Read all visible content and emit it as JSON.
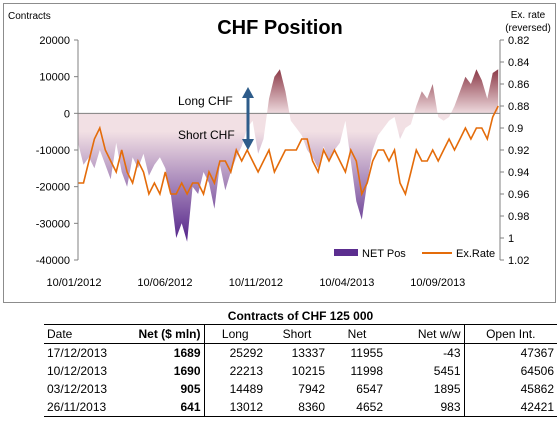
{
  "chart_data": {
    "type": "area",
    "title": "CHF Position",
    "y_left_label": "Contracts",
    "y_right_label_line1": "Ex. rate",
    "y_right_label_line2": "(reversed)",
    "y_left_ticks": [
      "20000",
      "10000",
      "0",
      "-10000",
      "-20000",
      "-30000",
      "-40000"
    ],
    "y_left_range": [
      -40000,
      20000
    ],
    "y_right_ticks": [
      "0.82",
      "0.84",
      "0.86",
      "0.88",
      "0.9",
      "0.92",
      "0.94",
      "0.96",
      "0.98",
      "1",
      "1.02"
    ],
    "y_right_range": [
      0.82,
      1.02
    ],
    "y_right_reversed": true,
    "x_range": [
      "10/01/2012",
      "17/12/2013"
    ],
    "x_tick_labels": [
      "10/01/2012",
      "10/06/2012",
      "10/11/2012",
      "10/04/2013",
      "10/09/2013"
    ],
    "x_tick_values": [
      0,
      5,
      10,
      15,
      20
    ],
    "x_max": 23.2,
    "annotations": {
      "long_label": "Long CHF",
      "short_label": "Short CHF"
    },
    "series": [
      {
        "name": "NET Pos",
        "x": [
          0.0,
          0.3,
          0.6,
          0.9,
          1.2,
          1.5,
          1.8,
          2.1,
          2.4,
          2.7,
          3.0,
          3.3,
          3.6,
          3.9,
          4.2,
          4.5,
          4.8,
          5.1,
          5.4,
          5.7,
          6.0,
          6.3,
          6.6,
          6.9,
          7.2,
          7.5,
          7.8,
          8.1,
          8.4,
          8.7,
          9.0,
          9.3,
          9.6,
          9.9,
          10.2,
          10.5,
          10.8,
          11.1,
          11.4,
          11.7,
          12.0,
          12.3,
          12.6,
          12.9,
          13.2,
          13.5,
          13.8,
          14.1,
          14.4,
          14.7,
          15.0,
          15.3,
          15.6,
          15.9,
          16.2,
          16.5,
          16.8,
          17.1,
          17.4,
          17.7,
          18.0,
          18.3,
          18.6,
          18.9,
          19.2,
          19.5,
          19.8,
          20.1,
          20.4,
          20.7,
          21.0,
          21.3,
          21.6,
          21.9,
          22.2,
          22.5,
          22.8,
          23.1
        ],
        "values": [
          -8000,
          -14000,
          -12000,
          -15000,
          -10000,
          -14000,
          -18000,
          -8000,
          -16000,
          -20000,
          -12000,
          -15000,
          -11000,
          -17000,
          -14000,
          -12000,
          -15000,
          -22000,
          -34000,
          -30000,
          -35000,
          -20000,
          -22000,
          -16000,
          -19000,
          -26000,
          -14000,
          -21000,
          -16000,
          -12000,
          -9000,
          -4000,
          -2000,
          -11000,
          -7000,
          4000,
          10000,
          12000,
          6000,
          -2000,
          -4000,
          -6000,
          -10000,
          -12000,
          -15000,
          -9000,
          -13000,
          -10000,
          -8000,
          -2000,
          -13000,
          -24000,
          -29000,
          -19000,
          -10000,
          -6000,
          -4000,
          -2000,
          -1000,
          -7000,
          -4000,
          -3000,
          2000,
          6000,
          4000,
          8000,
          -1000,
          -2000,
          -1000,
          2000,
          6000,
          10000,
          8000,
          12000,
          9000,
          4000,
          11000,
          12000
        ]
      },
      {
        "name": "Ex.Rate",
        "x": [
          0.0,
          0.3,
          0.6,
          0.9,
          1.2,
          1.5,
          1.8,
          2.1,
          2.4,
          2.7,
          3.0,
          3.3,
          3.6,
          3.9,
          4.2,
          4.5,
          4.8,
          5.1,
          5.4,
          5.7,
          6.0,
          6.3,
          6.6,
          6.9,
          7.2,
          7.5,
          7.8,
          8.1,
          8.4,
          8.7,
          9.0,
          9.3,
          9.6,
          9.9,
          10.2,
          10.5,
          10.8,
          11.1,
          11.4,
          11.7,
          12.0,
          12.3,
          12.6,
          12.9,
          13.2,
          13.5,
          13.8,
          14.1,
          14.4,
          14.7,
          15.0,
          15.3,
          15.6,
          15.9,
          16.2,
          16.5,
          16.8,
          17.1,
          17.4,
          17.7,
          18.0,
          18.3,
          18.6,
          18.9,
          19.2,
          19.5,
          19.8,
          20.1,
          20.4,
          20.7,
          21.0,
          21.3,
          21.6,
          21.9,
          22.2,
          22.5,
          22.8,
          23.1
        ],
        "values": [
          0.95,
          0.95,
          0.93,
          0.91,
          0.9,
          0.92,
          0.93,
          0.94,
          0.92,
          0.94,
          0.95,
          0.93,
          0.94,
          0.96,
          0.95,
          0.96,
          0.94,
          0.96,
          0.96,
          0.95,
          0.96,
          0.95,
          0.95,
          0.96,
          0.94,
          0.95,
          0.93,
          0.93,
          0.94,
          0.92,
          0.93,
          0.92,
          0.93,
          0.94,
          0.93,
          0.92,
          0.94,
          0.93,
          0.92,
          0.92,
          0.92,
          0.91,
          0.91,
          0.93,
          0.94,
          0.92,
          0.93,
          0.92,
          0.93,
          0.94,
          0.92,
          0.93,
          0.96,
          0.95,
          0.93,
          0.92,
          0.92,
          0.93,
          0.92,
          0.95,
          0.96,
          0.94,
          0.92,
          0.93,
          0.93,
          0.92,
          0.93,
          0.92,
          0.91,
          0.92,
          0.91,
          0.9,
          0.91,
          0.9,
          0.9,
          0.91,
          0.89,
          0.88
        ]
      }
    ]
  },
  "table": {
    "title": "Contracts of CHF 125 000",
    "headers": {
      "date": "Date",
      "net_mln": "Net ($ mln)",
      "long": "Long",
      "short": "Short",
      "net": "Net",
      "net_ww": "Net w/w",
      "open_int": "Open Int."
    },
    "rows": [
      {
        "date": "17/12/2013",
        "net_mln": "1689",
        "long": "25292",
        "short": "13337",
        "net": "11955",
        "net_ww": "-43",
        "open_int": "47367"
      },
      {
        "date": "10/12/2013",
        "net_mln": "1690",
        "long": "22213",
        "short": "10215",
        "net": "11998",
        "net_ww": "5451",
        "open_int": "64506"
      },
      {
        "date": "03/12/2013",
        "net_mln": "905",
        "long": "14489",
        "short": "7942",
        "net": "6547",
        "net_ww": "1895",
        "open_int": "45862"
      },
      {
        "date": "26/11/2013",
        "net_mln": "641",
        "long": "13012",
        "short": "8360",
        "net": "4652",
        "net_ww": "983",
        "open_int": "42421"
      }
    ]
  },
  "colors": {
    "area_top": "#7b1f2e",
    "area_mid": "#f2e0e4",
    "area_bottom": "#5b2d8f",
    "line": "#e46c0a",
    "arrow": "#2e5c8a",
    "axis": "#808080"
  }
}
